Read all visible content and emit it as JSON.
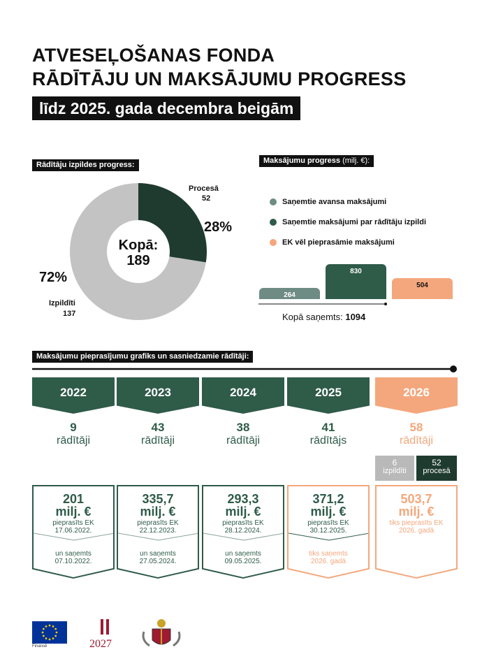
{
  "header": {
    "title_line1": "ATVESEĻOŠANAS FONDA",
    "title_line2": "RĀDĪTĀJU UN MAKSĀJUMU PROGRESS",
    "subtitle": "līdz 2025. gada decembra beigām"
  },
  "indicators": {
    "section_label": "Rādītāju izpildes progress:",
    "total_label": "Kopā:",
    "total_value": "189",
    "in_progress_label": "Procesā",
    "in_progress_value": "52",
    "in_progress_pct": "28%",
    "completed_label": "Izpildīti",
    "completed_value": "137",
    "completed_pct": "72%"
  },
  "payments": {
    "section_label": "Maksājumu progress",
    "section_unit": "(milj. €):",
    "legend": [
      {
        "label": "Saņemtie avansa maksājumi",
        "color": "#6e8b84"
      },
      {
        "label": "Saņemtie maksājumi par rādītāju izpildi",
        "color": "#2f5b49"
      },
      {
        "label": "EK vēl pieprasāmie maksājumi",
        "color": "#f4a77c"
      }
    ],
    "bars": [
      {
        "value": 264,
        "label": "264",
        "color": "#6e8b84"
      },
      {
        "value": 830,
        "label": "830",
        "color": "#2f5b49"
      },
      {
        "value": 504,
        "label": "504",
        "color": "#f4a77c"
      }
    ],
    "total_label": "Kopā saņemts:",
    "total_value": "1094"
  },
  "timeline": {
    "section_label": "Maksājumu pieprasījumu grafiks un sasniedzamie rādītāji:",
    "years": [
      {
        "year": "2022",
        "count": "9",
        "count_label": "rādītāji",
        "amount": "201",
        "unit": "milj. €",
        "req": "pieprasīts EK",
        "req_date": "17.06.2022.",
        "recv": "un saņemts",
        "recv_date": "07.10.2022."
      },
      {
        "year": "2023",
        "count": "43",
        "count_label": "rādītāji",
        "amount": "335,7",
        "unit": "milj. €",
        "req": "pieprasīts EK",
        "req_date": "22.12.2023.",
        "recv": "un saņemts",
        "recv_date": "27.05.2024."
      },
      {
        "year": "2024",
        "count": "38",
        "count_label": "rādītāji",
        "amount": "293,3",
        "unit": "milj. €",
        "req": "pieprasīts EK",
        "req_date": "28.12.2024.",
        "recv": "un saņemts",
        "recv_date": "09.05.2025."
      },
      {
        "year": "2025",
        "count": "41",
        "count_label": "rādītājs",
        "amount": "371,2",
        "unit": "milj. €",
        "req": "pieprasīts EK",
        "req_date": "30.12.2025.",
        "recv": "tiks saņemts",
        "recv_date": "2026. gadā"
      },
      {
        "year": "2026",
        "count": "58",
        "count_label": "rādītāji",
        "amount": "503,7",
        "unit": "milj. €",
        "req": "tiks pieprasīts EK",
        "req_date": "2026. gadā",
        "recv": "",
        "recv_date": ""
      }
    ],
    "split_2026": {
      "done_value": "6",
      "done_label": "izpildīti",
      "progress_value": "52",
      "progress_label": "procesā"
    }
  },
  "colors": {
    "dark_green": "#2f5b49",
    "grey_green": "#6e8b84",
    "orange": "#f4a77c",
    "light_grey": "#c3c3c3"
  },
  "footer": {
    "eu_text": "Finansē"
  }
}
